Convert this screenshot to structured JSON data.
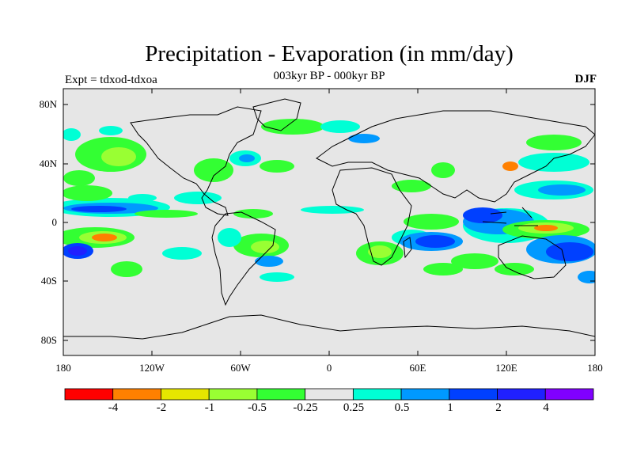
{
  "title": "Precipitation - Evaporation (in mm/day)",
  "subtitle": "003kyr BP - 000kyr BP",
  "experiment": "Expt = tdxod-tdxoa",
  "season": "DJF",
  "latitude_labels": [
    "80N",
    "40N",
    "0",
    "40S",
    "80S"
  ],
  "longitude_labels": [
    "180",
    "120W",
    "60W",
    "0",
    "60E",
    "120E",
    "180"
  ],
  "colorbar": {
    "levels": [
      "-4",
      "-2",
      "-1",
      "-0.5",
      "-0.25",
      "0.25",
      "0.5",
      "1",
      "2",
      "4"
    ],
    "colors": [
      "#ff0000",
      "#ff8000",
      "#e6e600",
      "#99ff33",
      "#33ff33",
      "#e6e6e6",
      "#00ffd5",
      "#0099ff",
      "#0040ff",
      "#2020ff",
      "#8000ff"
    ]
  },
  "background_color": "#e6e6e6"
}
